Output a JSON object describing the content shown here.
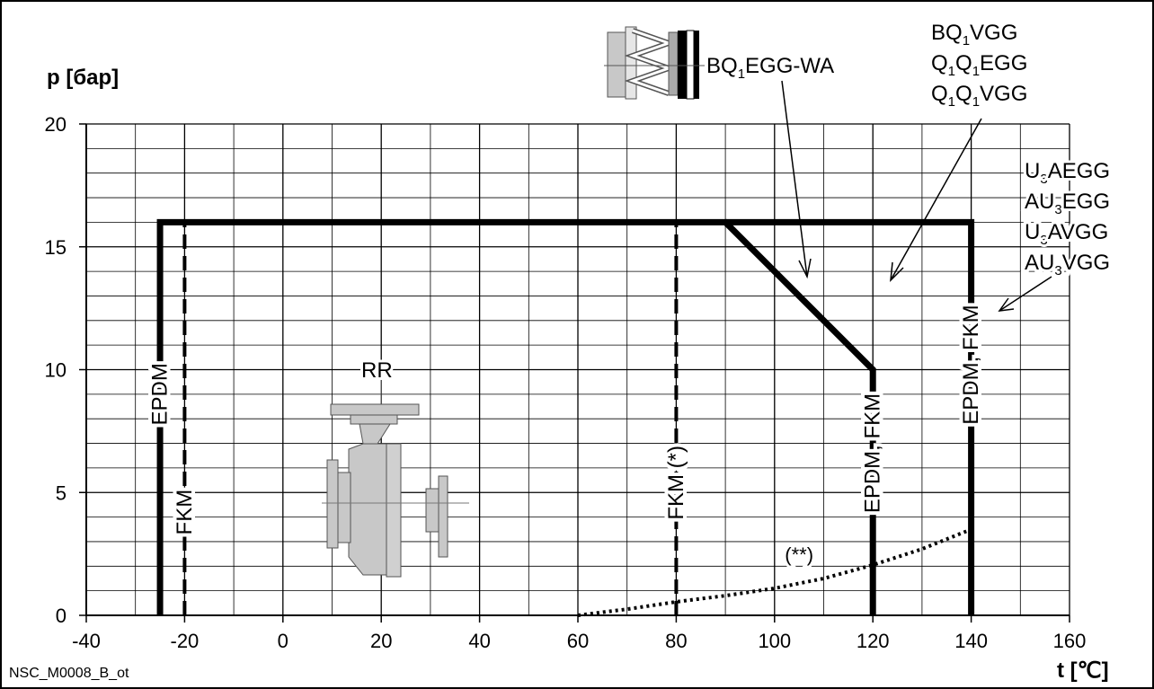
{
  "chart_data": {
    "type": "line",
    "ylabel": "p [бар]",
    "xlabel": "t [℃]",
    "figure_id": "NSC_M0008_B_ot",
    "xlim": [
      -40,
      160
    ],
    "ylim": [
      0,
      20
    ],
    "x_ticks": [
      -40,
      -20,
      0,
      20,
      40,
      60,
      80,
      100,
      120,
      140,
      160
    ],
    "y_ticks": [
      0,
      5,
      10,
      15,
      20
    ],
    "x_tick_labels": [
      "-40",
      "-20",
      "0",
      "20",
      "40",
      "60",
      "80",
      "100",
      "120",
      "140",
      "160"
    ],
    "y_tick_labels": [
      "0",
      "5",
      "10",
      "15",
      "20"
    ],
    "grid": true,
    "series": [
      {
        "name": "BQ1EGG-WA",
        "style": "solid",
        "points": [
          [
            -25,
            0
          ],
          [
            -25,
            16
          ],
          [
            90,
            16
          ],
          [
            120,
            10
          ],
          [
            120,
            0
          ]
        ]
      },
      {
        "name": "BQ1VGG / Q1Q1EGG / Q1Q1VGG",
        "style": "solid",
        "points": [
          [
            90,
            16
          ],
          [
            120,
            16
          ]
        ]
      },
      {
        "name": "U3AEGG / AU3EGG / U3AVGG / AU3VGG",
        "style": "solid",
        "points": [
          [
            120,
            16
          ],
          [
            140,
            16
          ],
          [
            140,
            0
          ]
        ]
      },
      {
        "name": "FKM",
        "style": "dashed",
        "points": [
          [
            -20,
            0
          ],
          [
            -20,
            16
          ]
        ]
      },
      {
        "name": "FKM (*)",
        "style": "dashed",
        "points": [
          [
            80,
            0
          ],
          [
            80,
            16
          ]
        ]
      },
      {
        "name": "(**)",
        "style": "dotted",
        "points": [
          [
            60,
            0
          ],
          [
            70,
            0.25
          ],
          [
            80,
            0.55
          ],
          [
            90,
            0.8
          ],
          [
            100,
            1.1
          ],
          [
            110,
            1.5
          ],
          [
            120,
            2.05
          ],
          [
            130,
            2.7
          ],
          [
            140,
            3.5
          ]
        ]
      }
    ],
    "annotations": {
      "line_labels": [
        {
          "text": "EPDM",
          "x": -25,
          "y": 9
        },
        {
          "text": "FKM",
          "x": -20,
          "y": 4.2
        },
        {
          "text": "FKM (*)",
          "x": 80,
          "y": 5.4
        },
        {
          "text": "EPDM, FKM",
          "x": 120,
          "y": 6.6
        },
        {
          "text": "EPDM, FKM",
          "x": 140,
          "y": 10.2
        }
      ],
      "curve_label": {
        "text": "(**)",
        "x": 105,
        "y": 2.2
      },
      "pump_label": "RR",
      "seal_top_label": {
        "main": "BQ",
        "sub": "1",
        "rest": "EGG-WA"
      },
      "group_right_top": [
        {
          "parts": [
            [
              "BQ",
              ""
            ],
            [
              "1",
              "sub"
            ],
            [
              "VGG",
              ""
            ]
          ]
        },
        {
          "parts": [
            [
              "Q",
              ""
            ],
            [
              "1",
              "sub"
            ],
            [
              "Q",
              ""
            ],
            [
              "1",
              "sub"
            ],
            [
              "EGG",
              ""
            ]
          ]
        },
        {
          "parts": [
            [
              "Q",
              ""
            ],
            [
              "1",
              "sub"
            ],
            [
              "Q",
              ""
            ],
            [
              "1",
              "sub"
            ],
            [
              "VGG",
              ""
            ]
          ]
        }
      ],
      "group_right_mid": [
        {
          "parts": [
            [
              "U",
              ""
            ],
            [
              "3",
              "sub"
            ],
            [
              "AEGG",
              ""
            ]
          ]
        },
        {
          "parts": [
            [
              "AU",
              ""
            ],
            [
              "3",
              "sub"
            ],
            [
              "EGG",
              ""
            ]
          ]
        },
        {
          "parts": [
            [
              "U",
              ""
            ],
            [
              "3",
              "sub"
            ],
            [
              "AVGG",
              ""
            ]
          ]
        },
        {
          "parts": [
            [
              "AU",
              ""
            ],
            [
              "3",
              "sub"
            ],
            [
              "VGG",
              ""
            ]
          ]
        }
      ]
    },
    "icons": [
      "mechanical-seal-icon",
      "pump-rr-icon"
    ],
    "colors": {
      "line": "#000000",
      "grid": "#000000",
      "icon_fill": "#c8c8c8",
      "icon_edge": "#555555",
      "background": "#ffffff"
    }
  }
}
